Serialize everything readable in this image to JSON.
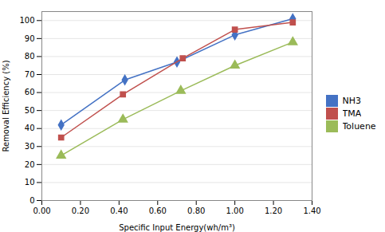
{
  "chart_data": {
    "type": "line",
    "xlabel": "Specific Input Energy(wh/m³)",
    "ylabel": "Removal Efficiency (%)",
    "series": [
      {
        "name": "NH3",
        "color": "#4472C4",
        "marker": "diamond",
        "x": [
          0.1,
          0.43,
          0.7,
          1.0,
          1.3
        ],
        "values": [
          42,
          67,
          77,
          92,
          101
        ]
      },
      {
        "name": "TMA",
        "color": "#C0504D",
        "marker": "square",
        "x": [
          0.1,
          0.42,
          0.73,
          1.0,
          1.3
        ],
        "values": [
          35,
          59,
          79,
          95,
          99
        ]
      },
      {
        "name": "Toluene",
        "color": "#9BBB59",
        "marker": "triangle",
        "x": [
          0.1,
          0.42,
          0.72,
          1.0,
          1.3
        ],
        "values": [
          25,
          45,
          61,
          75,
          88
        ]
      }
    ],
    "xlim": [
      0.0,
      1.4
    ],
    "ylim": [
      0,
      105
    ],
    "xticks": [
      {
        "value": 0.0,
        "label": "0.00"
      },
      {
        "value": 0.2,
        "label": "0.20"
      },
      {
        "value": 0.4,
        "label": "0.40"
      },
      {
        "value": 0.6,
        "label": "0.60"
      },
      {
        "value": 0.8,
        "label": "0.80"
      },
      {
        "value": 1.0,
        "label": "1.00"
      },
      {
        "value": 1.2,
        "label": "1.20"
      },
      {
        "value": 1.4,
        "label": "1.40"
      }
    ],
    "yticks": [
      0,
      10,
      20,
      30,
      40,
      50,
      60,
      70,
      80,
      90,
      100
    ],
    "grid": true,
    "legend": "right"
  }
}
